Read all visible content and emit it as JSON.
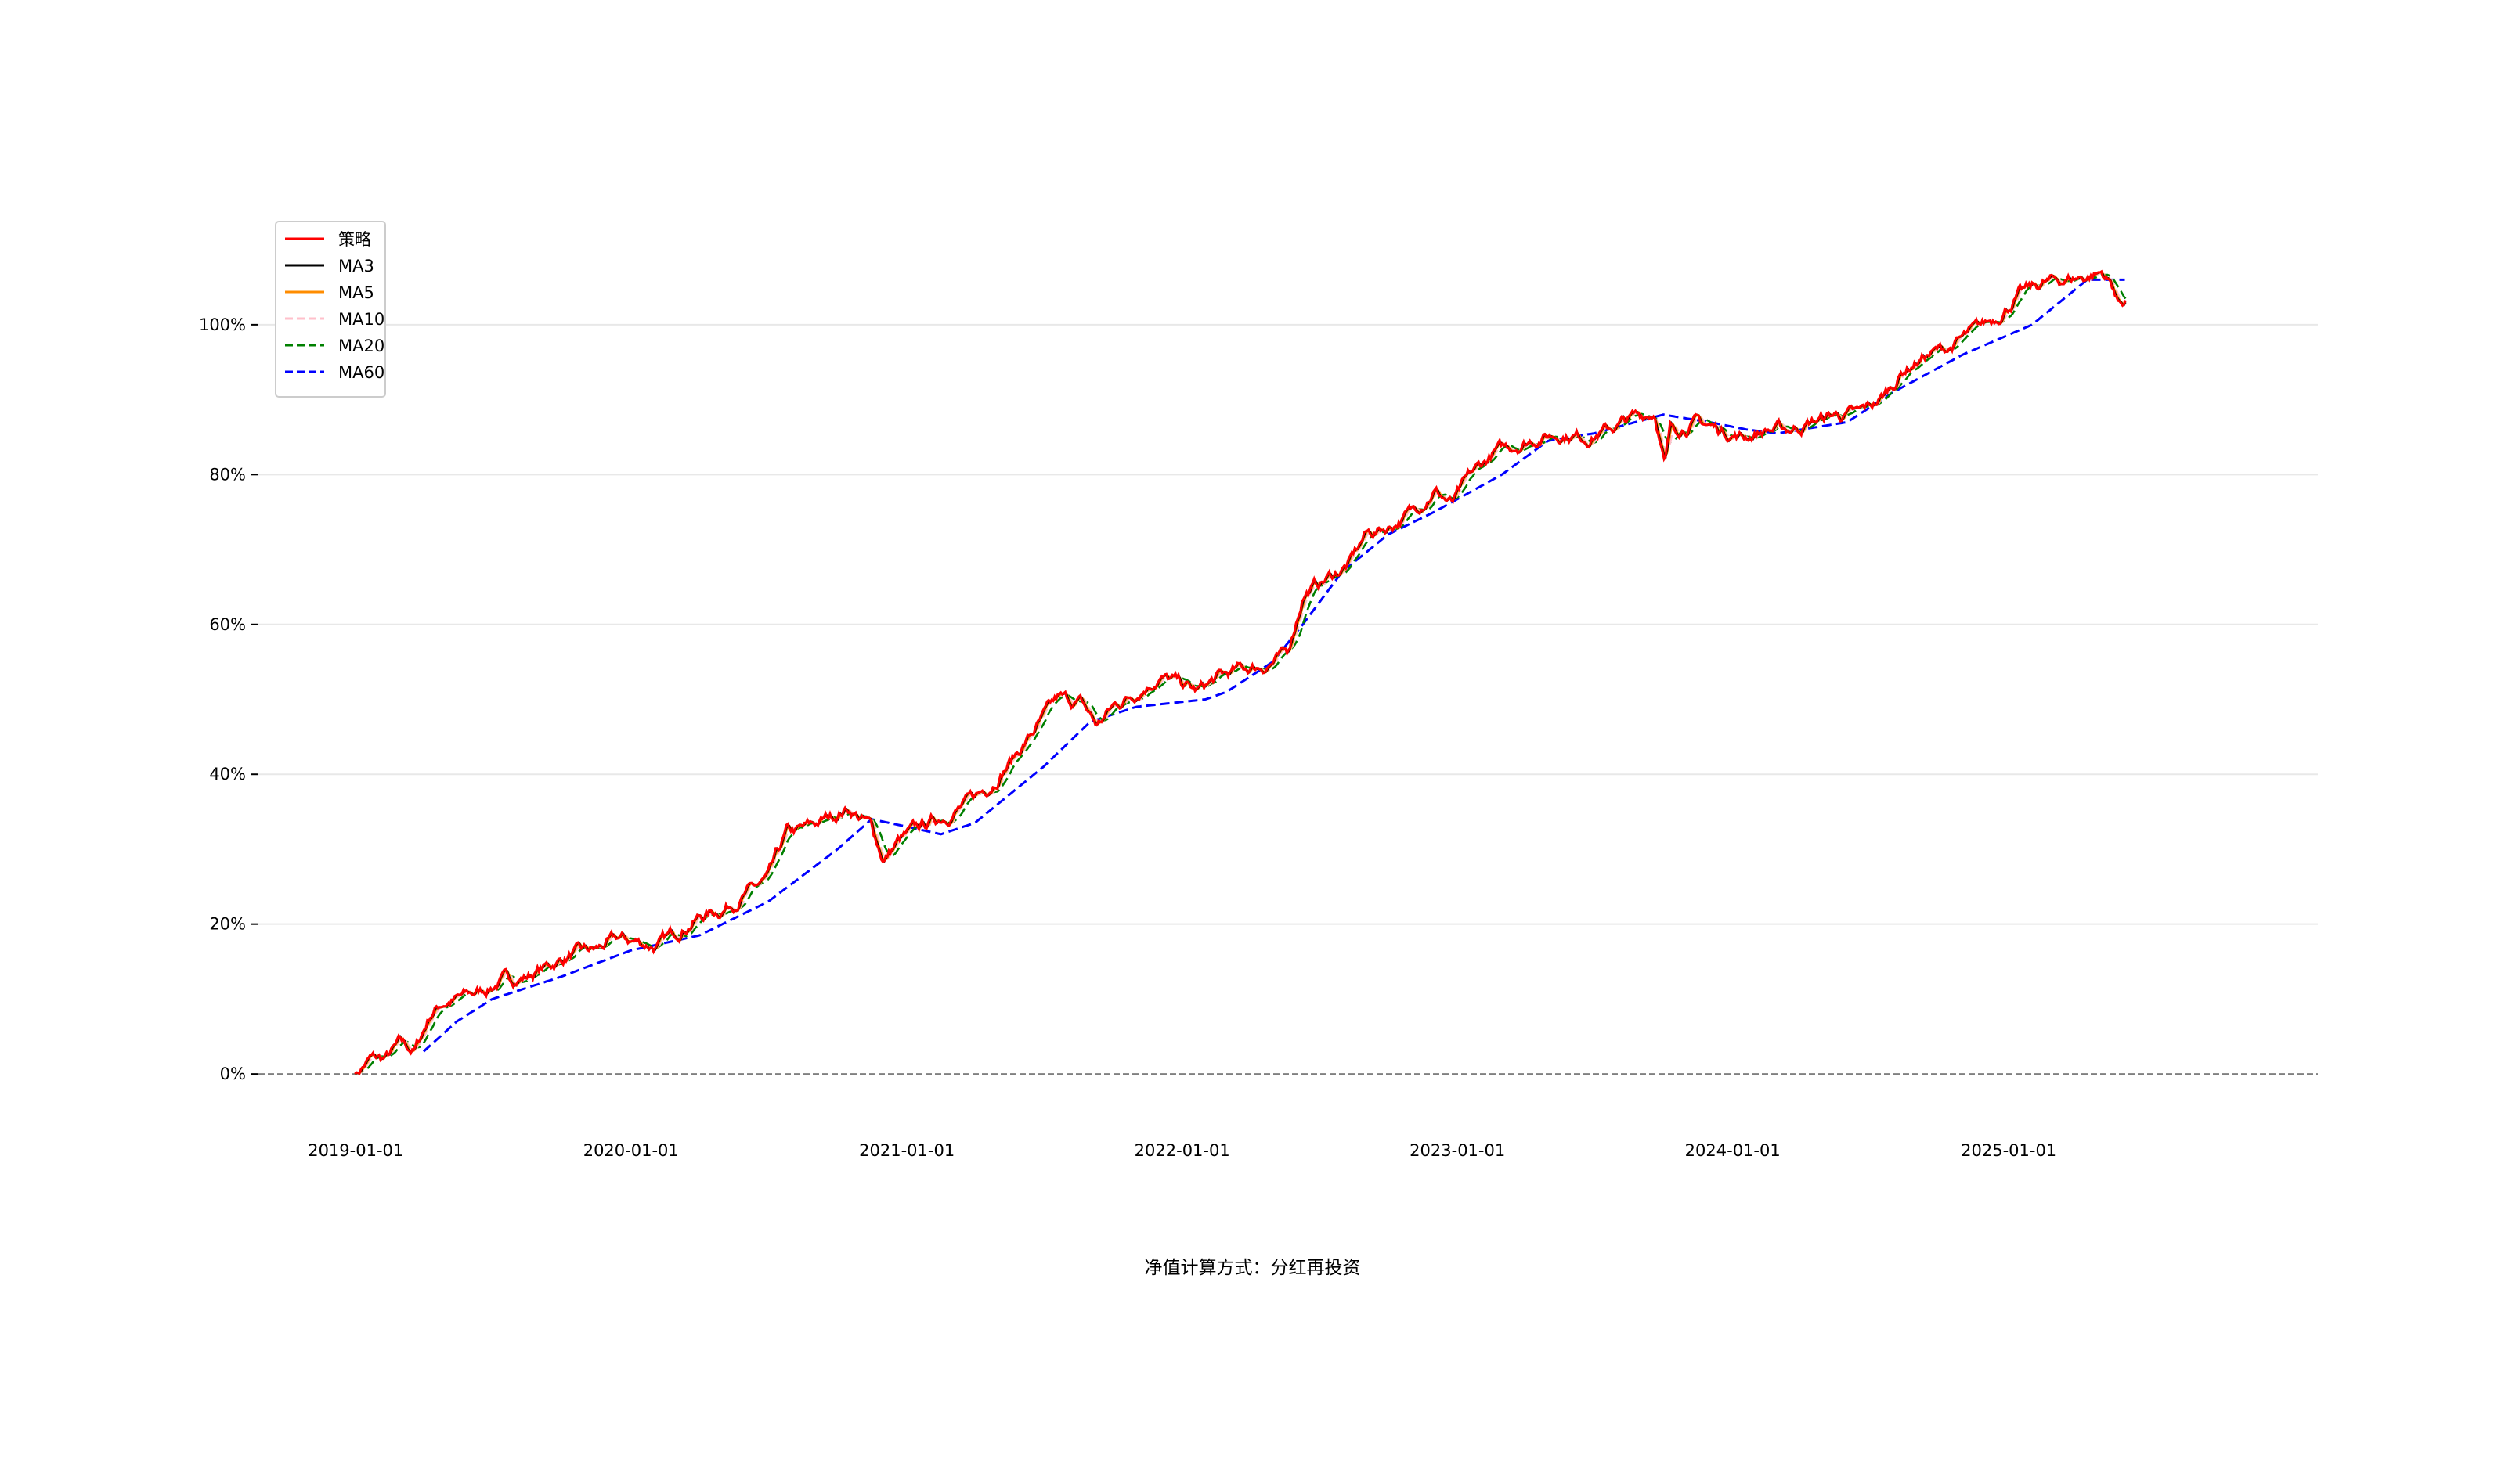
{
  "chart_data": {
    "type": "line",
    "title": "",
    "xlabel": "",
    "ylabel": "",
    "footnote": "净值计算方式：分红再投资",
    "y_format": "percent",
    "ylim": [
      -0.05,
      1.12
    ],
    "xlim": [
      "2018-08-25",
      "2026-02-15"
    ],
    "x_ticks": [
      "2019-01-01",
      "2020-01-01",
      "2021-01-01",
      "2022-01-01",
      "2023-01-01",
      "2024-01-01",
      "2025-01-01"
    ],
    "y_ticks": [
      0,
      0.2,
      0.4,
      0.6,
      0.8,
      1.0
    ],
    "y_tick_labels": [
      "0%",
      "20%",
      "40%",
      "60%",
      "80%",
      "100%"
    ],
    "grid": "horizontal",
    "reference_line": {
      "y": 0,
      "style": "dashed",
      "color": "#808080"
    },
    "legend": "top-left",
    "series_styles": [
      {
        "name": "策略",
        "color": "#ff0000",
        "dash": "solid"
      },
      {
        "name": "MA3",
        "color": "#000000",
        "dash": "solid"
      },
      {
        "name": "MA5",
        "color": "#ff8c00",
        "dash": "solid"
      },
      {
        "name": "MA10",
        "color": "#ffc0cb",
        "dash": "dashed"
      },
      {
        "name": "MA20",
        "color": "#008000",
        "dash": "dashed"
      },
      {
        "name": "MA60",
        "color": "#0000ff",
        "dash": "dashed"
      }
    ],
    "strategy_anchor_points": [
      [
        "2018-12-31",
        0.0
      ],
      [
        "2019-01-20",
        0.02
      ],
      [
        "2019-02-10",
        0.02
      ],
      [
        "2019-03-01",
        0.04
      ],
      [
        "2019-03-20",
        0.03
      ],
      [
        "2019-04-10",
        0.08
      ],
      [
        "2019-04-25",
        0.095
      ],
      [
        "2019-05-15",
        0.1
      ],
      [
        "2019-06-15",
        0.11
      ],
      [
        "2019-07-15",
        0.125
      ],
      [
        "2019-08-15",
        0.13
      ],
      [
        "2019-09-15",
        0.145
      ],
      [
        "2019-10-15",
        0.16
      ],
      [
        "2019-11-15",
        0.165
      ],
      [
        "2019-12-15",
        0.18
      ],
      [
        "2020-01-15",
        0.175
      ],
      [
        "2020-02-05",
        0.17
      ],
      [
        "2020-03-01",
        0.19
      ],
      [
        "2020-04-01",
        0.21
      ],
      [
        "2020-05-01",
        0.22
      ],
      [
        "2020-06-01",
        0.24
      ],
      [
        "2020-07-01",
        0.26
      ],
      [
        "2020-07-25",
        0.32
      ],
      [
        "2020-08-15",
        0.325
      ],
      [
        "2020-09-15",
        0.34
      ],
      [
        "2020-10-15",
        0.355
      ],
      [
        "2020-11-15",
        0.33
      ],
      [
        "2020-12-01",
        0.285
      ],
      [
        "2020-12-20",
        0.31
      ],
      [
        "2021-01-20",
        0.33
      ],
      [
        "2021-02-20",
        0.345
      ],
      [
        "2021-03-20",
        0.36
      ],
      [
        "2021-04-20",
        0.385
      ],
      [
        "2021-05-20",
        0.42
      ],
      [
        "2021-06-20",
        0.46
      ],
      [
        "2021-07-20",
        0.5
      ],
      [
        "2021-08-20",
        0.495
      ],
      [
        "2021-09-10",
        0.465
      ],
      [
        "2021-10-01",
        0.49
      ],
      [
        "2021-11-01",
        0.51
      ],
      [
        "2021-12-01",
        0.53
      ],
      [
        "2022-01-01",
        0.52
      ],
      [
        "2022-01-20",
        0.51
      ],
      [
        "2022-02-20",
        0.53
      ],
      [
        "2022-03-20",
        0.54
      ],
      [
        "2022-04-20",
        0.545
      ],
      [
        "2022-05-20",
        0.56
      ],
      [
        "2022-06-10",
        0.64
      ],
      [
        "2022-07-10",
        0.66
      ],
      [
        "2022-08-10",
        0.68
      ],
      [
        "2022-09-01",
        0.72
      ],
      [
        "2022-10-01",
        0.73
      ],
      [
        "2022-11-01",
        0.75
      ],
      [
        "2022-12-01",
        0.78
      ],
      [
        "2022-12-25",
        0.76
      ],
      [
        "2023-01-20",
        0.8
      ],
      [
        "2023-02-20",
        0.83
      ],
      [
        "2023-03-20",
        0.84
      ],
      [
        "2023-04-20",
        0.85
      ],
      [
        "2023-05-20",
        0.855
      ],
      [
        "2023-06-20",
        0.85
      ],
      [
        "2023-07-20",
        0.86
      ],
      [
        "2023-08-20",
        0.875
      ],
      [
        "2023-09-20",
        0.885
      ],
      [
        "2023-10-03",
        0.81
      ],
      [
        "2023-10-10",
        0.86
      ],
      [
        "2023-11-15",
        0.87
      ],
      [
        "2023-12-15",
        0.86
      ],
      [
        "2024-01-15",
        0.85
      ],
      [
        "2024-02-15",
        0.86
      ],
      [
        "2024-03-15",
        0.86
      ],
      [
        "2024-04-15",
        0.87
      ],
      [
        "2024-05-15",
        0.88
      ],
      [
        "2024-06-15",
        0.88
      ],
      [
        "2024-07-15",
        0.9
      ],
      [
        "2024-08-15",
        0.94
      ],
      [
        "2024-09-15",
        0.96
      ],
      [
        "2024-10-15",
        0.97
      ],
      [
        "2024-11-15",
        0.99
      ],
      [
        "2024-12-15",
        1.01
      ],
      [
        "2025-01-15",
        1.04
      ],
      [
        "2025-02-15",
        1.055
      ],
      [
        "2025-03-15",
        1.06
      ],
      [
        "2025-04-15",
        1.065
      ],
      [
        "2025-05-05",
        1.07
      ],
      [
        "2025-05-20",
        1.05
      ],
      [
        "2025-05-25",
        1.03
      ],
      [
        "2025-06-05",
        1.035
      ]
    ],
    "ma60_anchor_points": [
      [
        "2019-04-01",
        0.03
      ],
      [
        "2019-05-15",
        0.07
      ],
      [
        "2019-07-01",
        0.1
      ],
      [
        "2019-10-01",
        0.13
      ],
      [
        "2020-01-01",
        0.165
      ],
      [
        "2020-04-01",
        0.185
      ],
      [
        "2020-07-01",
        0.23
      ],
      [
        "2020-10-01",
        0.3
      ],
      [
        "2020-11-15",
        0.34
      ],
      [
        "2021-01-01",
        0.33
      ],
      [
        "2021-02-15",
        0.32
      ],
      [
        "2021-04-01",
        0.335
      ],
      [
        "2021-07-01",
        0.41
      ],
      [
        "2021-09-01",
        0.47
      ],
      [
        "2021-11-01",
        0.49
      ],
      [
        "2022-02-01",
        0.5
      ],
      [
        "2022-03-01",
        0.51
      ],
      [
        "2022-05-01",
        0.55
      ],
      [
        "2022-06-10",
        0.6
      ],
      [
        "2022-08-01",
        0.67
      ],
      [
        "2022-10-01",
        0.72
      ],
      [
        "2022-12-01",
        0.75
      ],
      [
        "2023-03-01",
        0.8
      ],
      [
        "2023-05-01",
        0.845
      ],
      [
        "2023-07-01",
        0.855
      ],
      [
        "2023-10-01",
        0.88
      ],
      [
        "2023-12-01",
        0.87
      ],
      [
        "2024-01-20",
        0.86
      ],
      [
        "2024-03-01",
        0.855
      ],
      [
        "2024-06-01",
        0.87
      ],
      [
        "2024-08-01",
        0.91
      ],
      [
        "2024-11-01",
        0.96
      ],
      [
        "2025-02-01",
        1.0
      ],
      [
        "2025-04-15",
        1.06
      ],
      [
        "2025-06-05",
        1.06
      ]
    ]
  }
}
